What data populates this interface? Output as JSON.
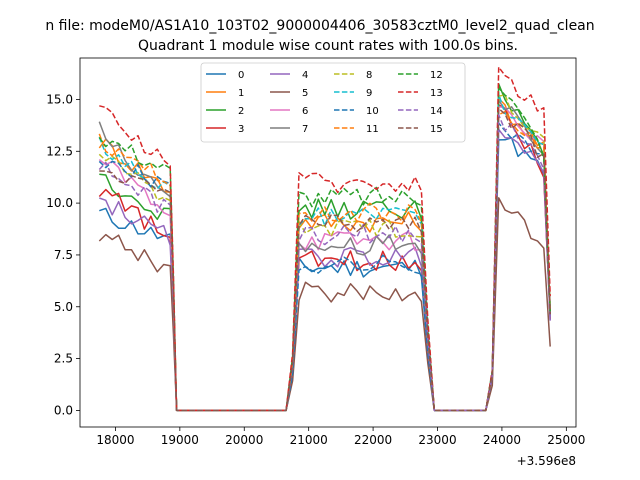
{
  "suptitle": "n file: modeM0/AS1A10_103T02_9000004406_30583cztM0_level2_quad_clean",
  "chart_data": {
    "type": "line",
    "title": "Quadrant 1 module wise count rates with 100.0s bins.",
    "xlabel": "",
    "ylabel": "",
    "x_offset_label": "+3.596e8",
    "xlim": [
      17450,
      25150
    ],
    "ylim": [
      -0.8,
      17.0
    ],
    "xticks": [
      18000,
      19000,
      20000,
      21000,
      22000,
      23000,
      24000,
      25000
    ],
    "yticks": [
      0.0,
      2.5,
      5.0,
      7.5,
      10.0,
      12.5,
      15.0
    ],
    "xtick_labels": [
      "18000",
      "19000",
      "20000",
      "21000",
      "22000",
      "23000",
      "24000",
      "25000"
    ],
    "ytick_labels": [
      "0.0",
      "2.5",
      "5.0",
      "7.5",
      "10.0",
      "12.5",
      "15.0"
    ],
    "legend_position": "upper center",
    "segments": [
      {
        "name": "high1",
        "x": [
          17750,
          18850
        ],
        "n": 12
      },
      {
        "name": "low1",
        "x": [
          18950,
          20650
        ],
        "n": 3
      },
      {
        "name": "high2",
        "x": [
          20850,
          22750
        ],
        "n": 20
      },
      {
        "name": "low2",
        "x": [
          22950,
          23750
        ],
        "n": 2
      },
      {
        "name": "high3",
        "x": [
          23950,
          24650
        ],
        "n": 8
      }
    ],
    "series": [
      {
        "name": "0",
        "color": "#1f77b4",
        "dash": "solid",
        "high1": [
          9.5,
          8.2
        ],
        "high2": 6.9,
        "high3": [
          13.4,
          11.5
        ]
      },
      {
        "name": "1",
        "color": "#ff7f0e",
        "dash": "solid",
        "high1": [
          13.0,
          10.6
        ],
        "high2": 9.1,
        "high3": [
          14.8,
          12.6
        ]
      },
      {
        "name": "2",
        "color": "#2ca02c",
        "dash": "solid",
        "high1": [
          11.3,
          9.3
        ],
        "high2": 9.7,
        "high3": [
          15.7,
          12.3
        ]
      },
      {
        "name": "3",
        "color": "#d62728",
        "dash": "solid",
        "high1": [
          10.7,
          8.3
        ],
        "high2": 7.2,
        "high3": [
          14.9,
          11.6
        ]
      },
      {
        "name": "4",
        "color": "#9467bd",
        "dash": "solid",
        "high1": [
          10.2,
          8.3
        ],
        "high2": 7.4,
        "high3": [
          13.9,
          11.4
        ]
      },
      {
        "name": "5",
        "color": "#8c564b",
        "dash": "solid",
        "high1": [
          8.6,
          6.8
        ],
        "high2": 5.7,
        "high3": [
          10.0,
          8.1
        ]
      },
      {
        "name": "6",
        "color": "#e377c2",
        "dash": "solid",
        "high1": [
          12.1,
          9.6
        ],
        "high2": 8.2,
        "high3": [
          14.6,
          12.8
        ]
      },
      {
        "name": "7",
        "color": "#7f7f7f",
        "dash": "solid",
        "high1": [
          13.5,
          10.0
        ],
        "high2": 8.0,
        "high3": [
          15.1,
          12.5
        ]
      },
      {
        "name": "8",
        "color": "#bcbd22",
        "dash": "dashed",
        "high1": [
          12.4,
          10.2
        ],
        "high2": 8.8,
        "high3": [
          15.5,
          12.9
        ]
      },
      {
        "name": "9",
        "color": "#17becf",
        "dash": "dashed",
        "high1": [
          12.8,
          10.4
        ],
        "high2": 9.4,
        "high3": [
          15.0,
          12.9
        ]
      },
      {
        "name": "10",
        "color": "#1f77b4",
        "dash": "dashed",
        "high1": [
          12.1,
          10.9
        ],
        "high2": 7.0,
        "high3": [
          13.8,
          12.0
        ]
      },
      {
        "name": "11",
        "color": "#ff7f0e",
        "dash": "dashed",
        "high1": [
          13.0,
          11.2
        ],
        "high2": 9.5,
        "high3": [
          14.4,
          12.7
        ]
      },
      {
        "name": "12",
        "color": "#2ca02c",
        "dash": "dashed",
        "high1": [
          13.3,
          11.5
        ],
        "high2": 10.3,
        "high3": [
          15.9,
          12.5
        ]
      },
      {
        "name": "13",
        "color": "#d62728",
        "dash": "dashed",
        "high1": [
          14.4,
          12.0
        ],
        "high2": 11.0,
        "high3": [
          16.3,
          14.5
        ]
      },
      {
        "name": "14",
        "color": "#9467bd",
        "dash": "dashed",
        "high1": [
          11.8,
          9.6
        ],
        "high2": 8.5,
        "high3": [
          14.2,
          11.9
        ]
      },
      {
        "name": "15",
        "color": "#8c564b",
        "dash": "dashed",
        "high1": [
          11.3,
          10.6
        ],
        "high2": 9.0,
        "high3": [
          14.7,
          12.2
        ]
      }
    ]
  }
}
